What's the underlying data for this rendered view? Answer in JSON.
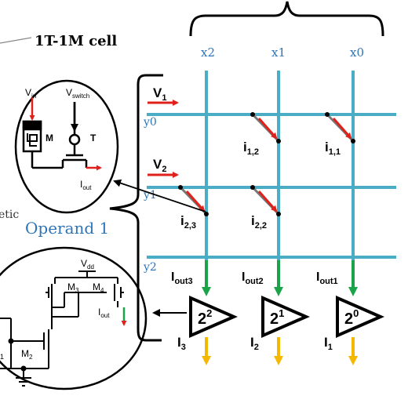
{
  "cell_title": "1T-1M cell",
  "operand_label": "Operand 1",
  "partial_text": "etic",
  "columns": [
    {
      "label": "x2"
    },
    {
      "label": "x1"
    },
    {
      "label": "x0"
    }
  ],
  "rows": [
    {
      "label": "y0",
      "voltage": {
        "main": "V",
        "sub": "1"
      }
    },
    {
      "label": "y1",
      "voltage": {
        "main": "V",
        "sub": "2"
      }
    },
    {
      "label": "y2"
    }
  ],
  "crosspoint_currents": [
    {
      "main": "i",
      "sub": "1,2"
    },
    {
      "main": "i",
      "sub": "1,1"
    },
    {
      "main": "i",
      "sub": "2,3"
    },
    {
      "main": "i",
      "sub": "2,2"
    }
  ],
  "output_currents": [
    {
      "main": "I",
      "sub": "out3"
    },
    {
      "main": "I",
      "sub": "out2"
    },
    {
      "main": "I",
      "sub": "out1"
    }
  ],
  "amplifiers": [
    {
      "base": "2",
      "exp": "2"
    },
    {
      "base": "2",
      "exp": "1"
    },
    {
      "base": "2",
      "exp": "0"
    }
  ],
  "final_currents": [
    {
      "main": "I",
      "sub": "3"
    },
    {
      "main": "I",
      "sub": "2"
    },
    {
      "main": "I",
      "sub": "1"
    }
  ],
  "cell_detail": {
    "vin": {
      "main": "V",
      "sub": "in"
    },
    "vswitch": {
      "main": "V",
      "sub": "switch"
    },
    "memristor": "M",
    "transistor": "T",
    "iout": {
      "main": "I",
      "sub": "out"
    }
  },
  "mirror_detail": {
    "vdd": {
      "main": "V",
      "sub": "dd"
    },
    "m3": {
      "main": "M",
      "sub": "3"
    },
    "m4": {
      "main": "M",
      "sub": "4"
    },
    "m2": {
      "main": "M",
      "sub": "2"
    },
    "m1_partial": "1",
    "iout": {
      "main": "I",
      "sub": "out"
    }
  },
  "colors": {
    "grid": "#4BACC6",
    "axis_label": "#2E75B6",
    "red_arrow": "#E0201B",
    "green_arrow": "#1AA348",
    "orange_arrow": "#F5B800",
    "line": "#000000"
  }
}
